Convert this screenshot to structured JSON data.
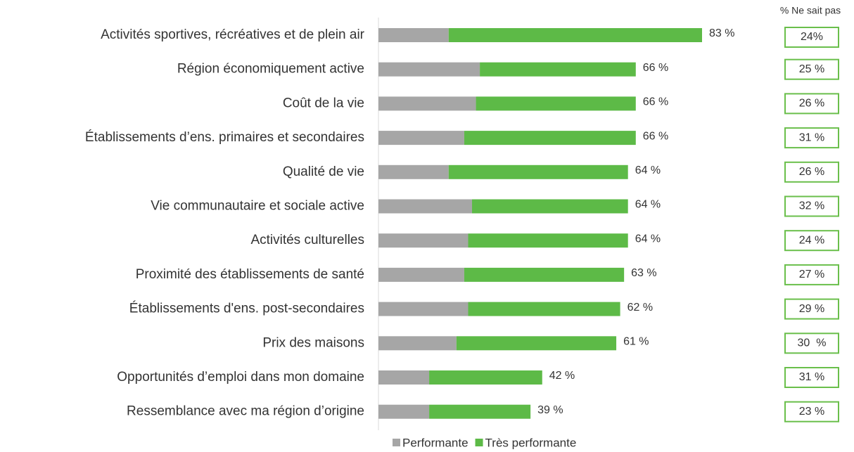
{
  "chart_data": {
    "type": "stacked_bar_horizontal",
    "categories": [
      "Activités sportives, récréatives et de plein air",
      "Région économiquement active",
      "Coût de la vie",
      "Établissements d’ens. primaires et secondaires",
      "Qualité de vie",
      "Vie communautaire et sociale active",
      "Activités culturelles",
      "Proximité des établissements de santé",
      "Établissements d'ens. post-secondaires",
      "Prix des maisons",
      "Opportunités d’emploi dans mon domaine",
      "Ressemblance avec ma région d’origine"
    ],
    "series": [
      {
        "name": "Performante",
        "color": "#a6a6a6",
        "values": [
          18,
          26,
          25,
          22,
          18,
          24,
          23,
          22,
          23,
          20,
          13,
          13
        ]
      },
      {
        "name": "Très performante",
        "color": "#5dba47",
        "values": [
          65,
          40,
          41,
          44,
          46,
          40,
          41,
          41,
          39,
          41,
          29,
          26
        ]
      }
    ],
    "total_values": [
      83,
      66,
      66,
      66,
      64,
      64,
      64,
      63,
      62,
      61,
      42,
      39
    ],
    "total_value_labels": [
      "83 %",
      "66 %",
      "66 %",
      "66 %",
      "64 %",
      "64 %",
      "64 %",
      "63 %",
      "62 %",
      "61 %",
      "42 %",
      "39 %"
    ],
    "dont_know": {
      "title": "% Ne sait pas",
      "values": [
        24,
        25,
        26,
        31,
        26,
        32,
        24,
        27,
        29,
        30,
        31,
        23
      ],
      "value_labels": [
        "24%",
        "25 %",
        "26 %",
        "31 %",
        "26 %",
        "32 %",
        "24 %",
        "27 %",
        "29 %",
        "30  %",
        "31 %",
        "23 %"
      ]
    },
    "legend": "bottom"
  }
}
